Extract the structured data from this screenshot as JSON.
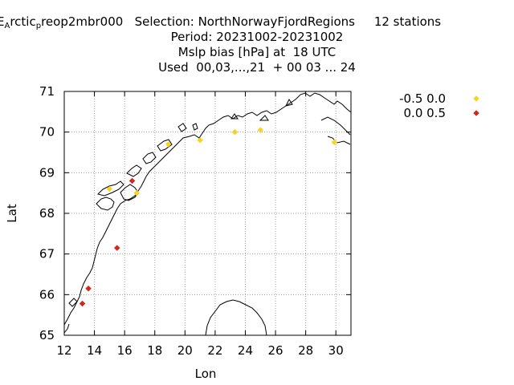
{
  "header": {
    "line1_prefix": "E",
    "line1_sub1": "A",
    "line1_mid": "rctic",
    "line1_sub2": "p",
    "line1_rest": "reop2mbr000   Selection: NorthNorwayFjordRegions     12 stations",
    "line2": "Period: 20231002-20231002",
    "line3": "Mslp bias [hPa] at  18 UTC",
    "line4": "Used  00,03,...,21  + 00 03 ... 24"
  },
  "chart_data": {
    "type": "scatter",
    "xlabel": "Lon",
    "ylabel": "Lat",
    "xlim": [
      12,
      31
    ],
    "ylim": [
      65,
      71
    ],
    "xticks": [
      12,
      14,
      16,
      18,
      20,
      22,
      24,
      26,
      28,
      30
    ],
    "yticks": [
      65,
      66,
      67,
      68,
      69,
      70,
      71
    ],
    "grid": true,
    "legend_placement": "top-right",
    "series": [
      {
        "name": "-0.5 0.0",
        "color": "#f5d523",
        "points": [
          [
            15.0,
            68.6
          ],
          [
            16.8,
            68.5
          ],
          [
            18.9,
            69.7
          ],
          [
            21.0,
            69.8
          ],
          [
            23.3,
            70.0
          ],
          [
            25.0,
            70.05
          ],
          [
            29.9,
            69.75
          ]
        ]
      },
      {
        "name": "0.0 0.5",
        "color": "#d4281c",
        "points": [
          [
            16.5,
            68.8
          ],
          [
            15.5,
            67.15
          ],
          [
            13.6,
            66.15
          ],
          [
            13.2,
            65.78
          ]
        ]
      }
    ]
  }
}
